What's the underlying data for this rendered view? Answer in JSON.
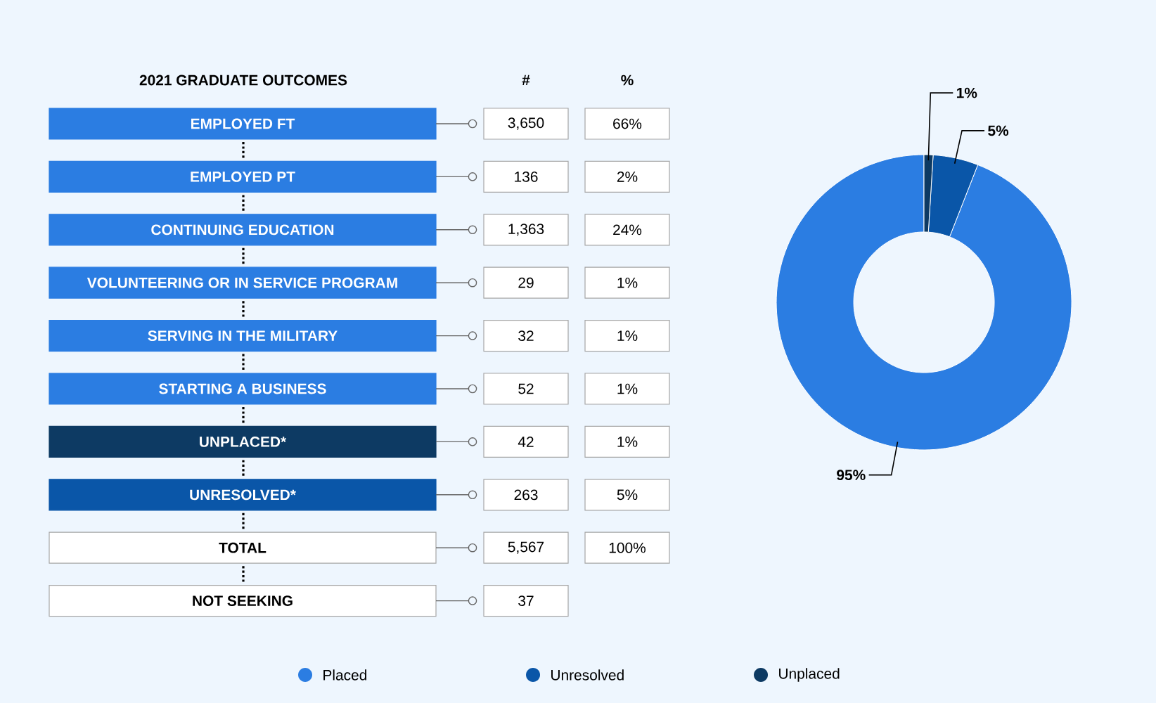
{
  "chart_data": [
    {
      "type": "other",
      "title": "2021 GRADUATE OUTCOMES",
      "categories": [
        "EMPLOYED FT",
        "EMPLOYED PT",
        "CONTINUING EDUCATION",
        "VOLUNTEERING OR IN SERVICE PROGRAM",
        "SERVING IN THE MILITARY",
        "STARTING A BUSINESS",
        "UNPLACED*",
        "UNRESOLVED*",
        "TOTAL",
        "NOT SEEKING"
      ],
      "colors": [
        "#2b7de2",
        "#2b7de2",
        "#2b7de2",
        "#2b7de2",
        "#2b7de2",
        "#2b7de2",
        "#0d3a63",
        "#0a56a8",
        "#ffffff",
        "#ffffff"
      ],
      "annotations": [
        "#",
        "%",
        "3,650",
        "66%",
        "136",
        "2%",
        "1,363",
        "24%",
        "29",
        "1%",
        "32",
        "1%",
        "52",
        "1%",
        "42",
        "1%",
        "263",
        "5%",
        "5,567",
        "100%",
        "37"
      ]
    },
    {
      "type": "donut",
      "categories": [
        "Placed",
        "Unresolved",
        "Unplaced"
      ],
      "values": [
        95,
        5,
        1
      ],
      "colors": [
        "#2b7de2",
        "#0a56a8",
        "#0d3a63"
      ],
      "value_labels": [
        "95%",
        "5%",
        "1%"
      ],
      "legend": "bottom"
    }
  ]
}
